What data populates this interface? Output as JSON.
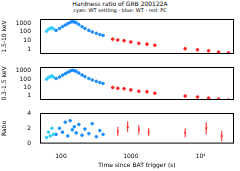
{
  "chart_data": [
    {
      "type": "scatter",
      "title": "Hardness ratio of GRB 200122A",
      "subtitle": "cyan: WT settling - blue: WT - red: PC",
      "ylabel": "1.5-10 keV",
      "log": true,
      "tick_labels": "y",
      "xlim": [
        50,
        30000
      ],
      "xticks": [
        100,
        1000,
        {
          "value": 10000,
          "label": "10⁴"
        }
      ],
      "ylim": [
        0.3,
        3000
      ],
      "yticks": [
        1,
        10,
        100,
        1000
      ],
      "series": [
        {
          "name": "WT settling",
          "color": "#33ccff",
          "x": [
            62,
            66,
            70,
            74,
            78
          ],
          "values": [
            120,
            200,
            250,
            300,
            220
          ]
        },
        {
          "name": "WT",
          "color": "#1a8cff",
          "x": [
            85,
            95,
            105,
            115,
            125,
            135,
            145,
            155,
            165,
            180,
            200,
            220,
            250,
            280,
            320,
            360,
            400
          ],
          "values": [
            150,
            250,
            400,
            600,
            900,
            1200,
            1500,
            1400,
            1100,
            700,
            400,
            250,
            150,
            100,
            70,
            50,
            40
          ]
        },
        {
          "name": "PC",
          "color": "#ff2020",
          "x": [
            550,
            650,
            800,
            1000,
            1300,
            1700,
            2200,
            6000,
            9000,
            13000,
            18000,
            25000
          ],
          "values": [
            15,
            12,
            10,
            7,
            5,
            4,
            3,
            1.2,
            0.9,
            0.7,
            0.5,
            0.4
          ]
        }
      ]
    },
    {
      "type": "scatter",
      "ylabel": "0.3-1.5 keV",
      "log": true,
      "tick_labels": "y",
      "xlim": [
        50,
        30000
      ],
      "xticks": [
        100,
        1000,
        {
          "value": 10000,
          "label": "10⁴"
        }
      ],
      "ylim": [
        0.3,
        3000
      ],
      "yticks": [
        1,
        10,
        100,
        1000
      ],
      "series": [
        {
          "name": "WT settling",
          "color": "#33ccff",
          "x": [
            62,
            66,
            70,
            74,
            78
          ],
          "values": [
            100,
            160,
            200,
            250,
            180
          ]
        },
        {
          "name": "WT",
          "color": "#1a8cff",
          "x": [
            85,
            95,
            105,
            115,
            125,
            135,
            145,
            155,
            165,
            180,
            200,
            220,
            250,
            280,
            320,
            360,
            400
          ],
          "values": [
            120,
            180,
            300,
            450,
            700,
            950,
            1200,
            1100,
            900,
            550,
            320,
            200,
            120,
            80,
            55,
            40,
            30
          ]
        },
        {
          "name": "PC",
          "color": "#ff2020",
          "x": [
            550,
            650,
            800,
            1000,
            1300,
            1700,
            2200,
            6000,
            9000,
            13000,
            18000,
            25000
          ],
          "values": [
            10,
            8,
            7,
            5,
            3.5,
            3,
            2,
            0.9,
            0.7,
            0.5,
            0.4,
            0.3
          ]
        }
      ]
    },
    {
      "type": "scatter",
      "ylabel": "Ratio",
      "xlabel": "Time since BAT trigger (s)",
      "log": "x",
      "xlim": [
        50,
        30000
      ],
      "xticks": [
        100,
        1000,
        {
          "value": 10000,
          "label": "10⁴"
        }
      ],
      "ylim": [
        0,
        4
      ],
      "yticks": [
        0,
        2,
        4
      ],
      "series": [
        {
          "name": "WT settling",
          "color": "#33ccff",
          "x": [
            62,
            66,
            70,
            74,
            78
          ],
          "values": [
            0.8,
            1.5,
            1.0,
            2.0,
            1.2
          ]
        },
        {
          "name": "WT",
          "color": "#1a8cff",
          "x": [
            85,
            95,
            105,
            115,
            125,
            135,
            145,
            155,
            165,
            180,
            200,
            220,
            250,
            280,
            320,
            360,
            400
          ],
          "values": [
            1.2,
            2,
            1.5,
            2.8,
            1,
            3,
            1.8,
            2.2,
            1.4,
            2.5,
            1.1,
            1.9,
            1.3,
            2.6,
            0.9,
            1.7,
            1.2
          ]
        },
        {
          "name": "PC",
          "color": "#ff2020",
          "x": [
            650,
            900,
            1300,
            1800,
            6000,
            12000,
            20000
          ],
          "values": [
            1.6,
            2.2,
            1.8,
            1.5,
            1.4,
            2.0,
            1.0
          ],
          "yerr": [
            0.6,
            0.7,
            0.6,
            0.5,
            0.6,
            0.8,
            0.7
          ]
        }
      ]
    }
  ]
}
